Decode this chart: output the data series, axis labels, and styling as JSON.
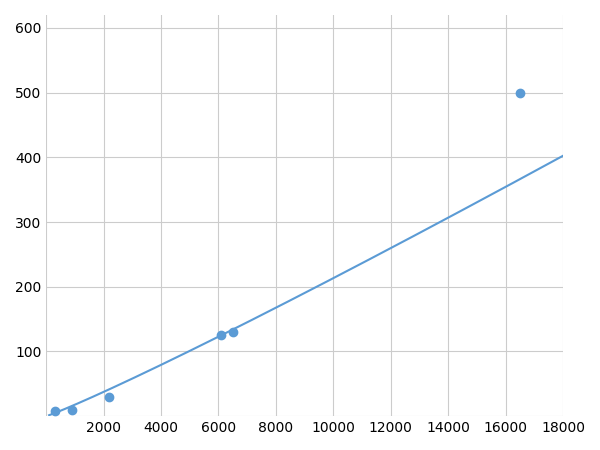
{
  "x_points": [
    300,
    900,
    2200,
    6100,
    6500,
    16500
  ],
  "y_points": [
    8,
    10,
    30,
    125,
    130,
    500
  ],
  "line_color": "#5b9bd5",
  "marker_color": "#5b9bd5",
  "marker_size": 6,
  "line_width": 1.5,
  "xlim": [
    0,
    18000
  ],
  "ylim": [
    0,
    620
  ],
  "xticks": [
    0,
    2000,
    4000,
    6000,
    8000,
    10000,
    12000,
    14000,
    16000,
    18000
  ],
  "yticks": [
    0,
    100,
    200,
    300,
    400,
    500,
    600
  ],
  "grid_color": "#cccccc",
  "grid_linewidth": 0.8,
  "background_color": "#ffffff",
  "tick_labelsize": 10
}
